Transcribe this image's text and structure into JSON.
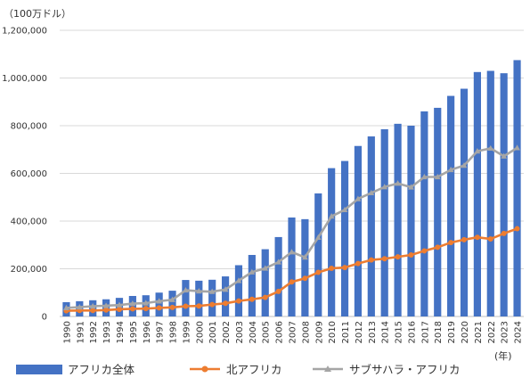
{
  "chart_data": {
    "type": "bar",
    "title": "",
    "unit_label": "（100万ドル）",
    "xlabel": "",
    "x_unit_label": "(年)",
    "ylabel": "",
    "ylim": [
      0,
      1200000
    ],
    "y_ticks": [
      0,
      200000,
      400000,
      600000,
      800000,
      1000000,
      1200000
    ],
    "y_tick_labels": [
      "0",
      "200,000",
      "400,000",
      "600,000",
      "800,000",
      "1,000,000",
      "1,200,000"
    ],
    "grid": "horizontal",
    "legend_position": "bottom",
    "categories": [
      "1990",
      "1991",
      "1992",
      "1993",
      "1994",
      "1995",
      "1996",
      "1997",
      "1998",
      "1999",
      "2000",
      "2001",
      "2002",
      "2003",
      "2004",
      "2005",
      "2006",
      "2007",
      "2008",
      "2009",
      "2010",
      "2011",
      "2012",
      "2013",
      "2014",
      "2015",
      "2016",
      "2017",
      "2018",
      "2019",
      "2020",
      "2021",
      "2022",
      "2023",
      "2024"
    ],
    "series": [
      {
        "name": "アフリカ全体",
        "kind": "bar",
        "color": "#4472C4",
        "values": [
          60000,
          64000,
          68000,
          72000,
          78000,
          86000,
          89000,
          100000,
          108000,
          153000,
          150000,
          154000,
          168000,
          215000,
          258000,
          282000,
          333000,
          415000,
          408000,
          516000,
          622000,
          652000,
          715000,
          755000,
          785000,
          808000,
          800000,
          860000,
          875000,
          925000,
          955000,
          1025000,
          1030000,
          1020000,
          1075000
        ]
      },
      {
        "name": "北アフリカ",
        "kind": "line",
        "color": "#ED7D31",
        "values": [
          24000,
          25000,
          25000,
          27000,
          30000,
          32000,
          33000,
          36000,
          38000,
          43000,
          44000,
          50000,
          55000,
          65000,
          72000,
          80000,
          105000,
          145000,
          160000,
          185000,
          202000,
          205000,
          222000,
          237000,
          242000,
          250000,
          258000,
          275000,
          290000,
          310000,
          322000,
          332000,
          325000,
          348000,
          368000
        ]
      },
      {
        "name": "サブサハラ・アフリカ",
        "kind": "line",
        "color": "#A5A5A5",
        "values": [
          36000,
          39000,
          43000,
          45000,
          48000,
          54000,
          56000,
          64000,
          70000,
          110000,
          106000,
          104000,
          113000,
          150000,
          186000,
          202000,
          228000,
          270000,
          248000,
          331000,
          420000,
          447000,
          493000,
          518000,
          543000,
          558000,
          542000,
          585000,
          585000,
          615000,
          633000,
          693000,
          705000,
          672000,
          707000
        ]
      }
    ]
  }
}
